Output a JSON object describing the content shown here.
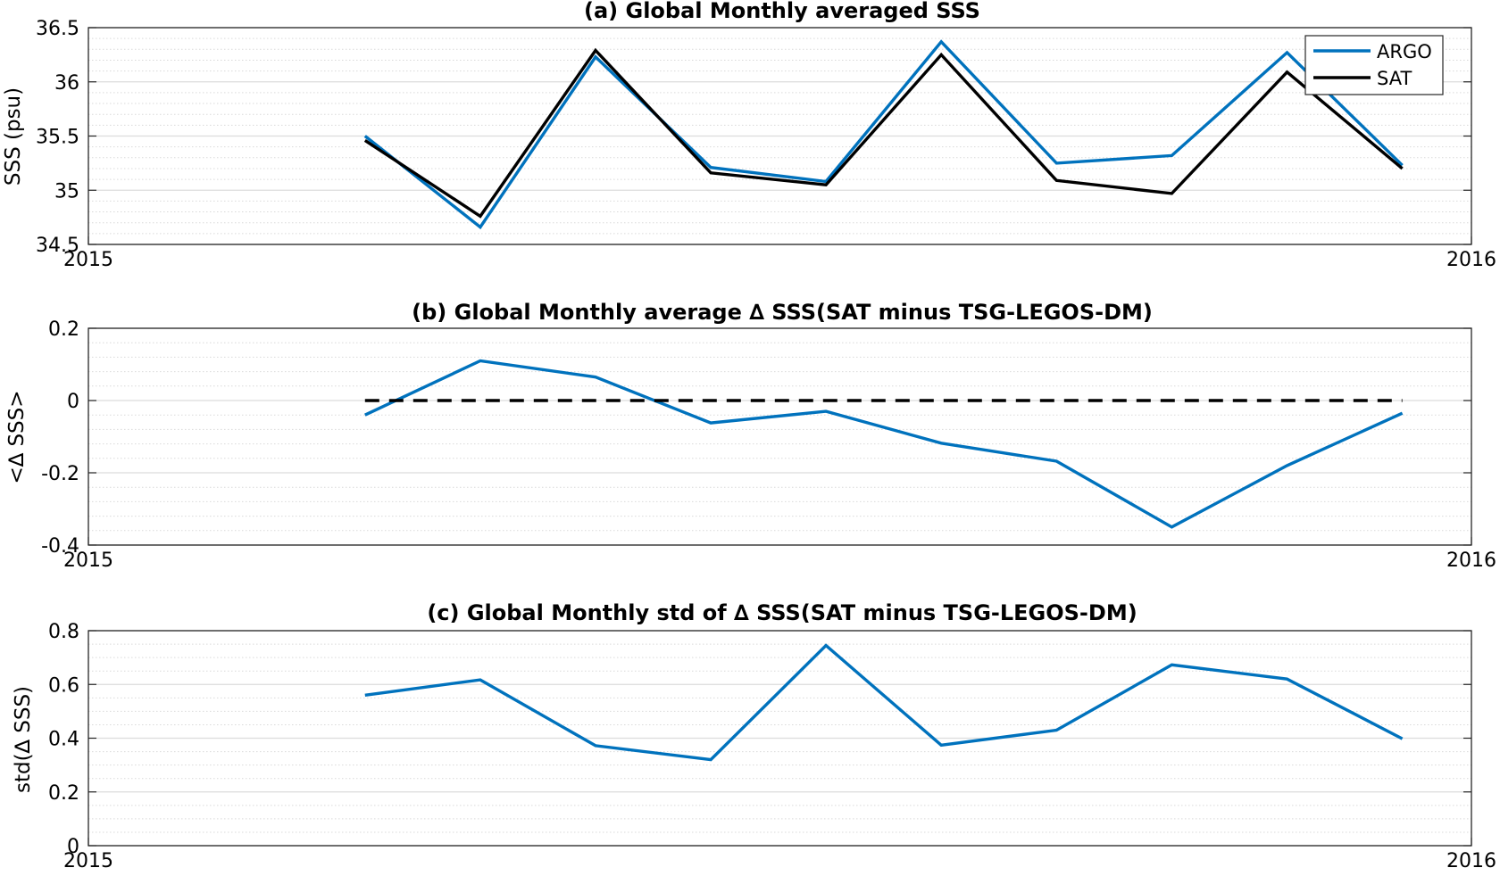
{
  "chart_data": [
    {
      "type": "line",
      "title": "(a) Global Monthly averaged SSS",
      "ylabel": "SSS (psu)",
      "xlabel": "",
      "xlim": [
        0,
        12
      ],
      "ylim": [
        34.5,
        36.5
      ],
      "x_tick_labels": [
        {
          "x": 0,
          "label": "2015"
        },
        {
          "x": 12,
          "label": "2016"
        }
      ],
      "y_ticks": [
        34.5,
        35,
        35.5,
        36,
        36.5
      ],
      "y_tick_labels": [
        "34.5",
        "35",
        "35.5",
        "36",
        "36.5"
      ],
      "minor_grid_step": 0.1,
      "grid": true,
      "legend_position": "top-right",
      "x": [
        2.4,
        3.4,
        4.4,
        5.4,
        6.4,
        7.4,
        8.4,
        9.4,
        10.4,
        11.4
      ],
      "series": [
        {
          "name": "ARGO",
          "color": "#0072bd",
          "dash": "solid",
          "values": [
            35.5,
            34.66,
            36.23,
            35.21,
            35.08,
            36.37,
            35.25,
            35.32,
            36.27,
            35.23
          ]
        },
        {
          "name": "SAT",
          "color": "#000000",
          "dash": "solid",
          "values": [
            35.46,
            34.76,
            36.29,
            35.16,
            35.05,
            36.25,
            35.09,
            34.97,
            36.09,
            35.2
          ]
        }
      ]
    },
    {
      "type": "line",
      "title": "(b) Global Monthly average ∆ SSS(SAT minus TSG-LEGOS-DM)",
      "ylabel": "<∆ SSS>",
      "xlabel": "",
      "xlim": [
        0,
        12
      ],
      "ylim": [
        -0.4,
        0.2
      ],
      "x_tick_labels": [
        {
          "x": 0,
          "label": "2015"
        },
        {
          "x": 12,
          "label": "2016"
        }
      ],
      "y_ticks": [
        -0.4,
        -0.2,
        0,
        0.2
      ],
      "y_tick_labels": [
        "-0.4",
        "-0.2",
        "0",
        "0.2"
      ],
      "minor_grid_step": 0.04,
      "grid": true,
      "x": [
        2.4,
        3.4,
        4.4,
        5.4,
        6.4,
        7.4,
        8.4,
        9.4,
        10.4,
        11.4
      ],
      "series": [
        {
          "color": "#0072bd",
          "dash": "solid",
          "values": [
            -0.04,
            0.11,
            0.065,
            -0.062,
            -0.03,
            -0.118,
            -0.168,
            -0.35,
            -0.18,
            -0.035
          ]
        },
        {
          "color": "#000000",
          "dash": "dashed",
          "x": [
            2.4,
            11.4
          ],
          "values": [
            0,
            0
          ]
        }
      ]
    },
    {
      "type": "line",
      "title": "(c) Global Monthly std of ∆ SSS(SAT minus TSG-LEGOS-DM)",
      "ylabel": "std(∆ SSS)",
      "xlabel": "",
      "xlim": [
        0,
        12
      ],
      "ylim": [
        0,
        0.8
      ],
      "x_tick_labels": [
        {
          "x": 0,
          "label": "2015"
        },
        {
          "x": 12,
          "label": "2016"
        }
      ],
      "y_ticks": [
        0,
        0.2,
        0.4,
        0.6,
        0.8
      ],
      "y_tick_labels": [
        "0",
        "0.2",
        "0.4",
        "0.6",
        "0.8"
      ],
      "minor_grid_step": 0.05,
      "grid": true,
      "x": [
        2.4,
        3.4,
        4.4,
        5.4,
        6.4,
        7.4,
        8.4,
        9.4,
        10.4,
        11.4
      ],
      "series": [
        {
          "color": "#0072bd",
          "dash": "solid",
          "values": [
            0.56,
            0.617,
            0.372,
            0.32,
            0.745,
            0.374,
            0.43,
            0.673,
            0.62,
            0.398
          ]
        }
      ]
    }
  ]
}
